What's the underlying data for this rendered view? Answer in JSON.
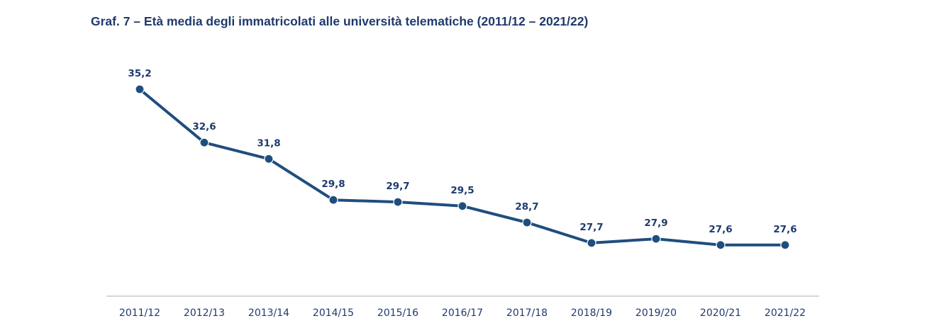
{
  "title": "Graf. 7 – Età media degli immatricolati alle università telematiche (2011/12 – 2021/22)",
  "colors": {
    "line": "#1f4e7e",
    "text": "#1f3a6d",
    "axis": "#c8c8c8"
  },
  "chart_data": {
    "type": "line",
    "title": "Graf. 7 – Età media degli immatricolati alle università telematiche (2011/12 – 2021/22)",
    "categories": [
      "2011/12",
      "2012/13",
      "2013/14",
      "2014/15",
      "2015/16",
      "2016/17",
      "2017/18",
      "2018/19",
      "2019/20",
      "2020/21",
      "2021/22"
    ],
    "values": [
      35.2,
      32.6,
      31.8,
      29.8,
      29.7,
      29.5,
      28.7,
      27.7,
      27.9,
      27.6,
      27.6
    ],
    "labels": [
      "35,2",
      "32,6",
      "31,8",
      "29,8",
      "29,7",
      "29,5",
      "28,7",
      "27,7",
      "27,9",
      "27,6",
      "27,6"
    ],
    "xlabel": "",
    "ylabel": "",
    "grid": false,
    "legend": "none"
  }
}
